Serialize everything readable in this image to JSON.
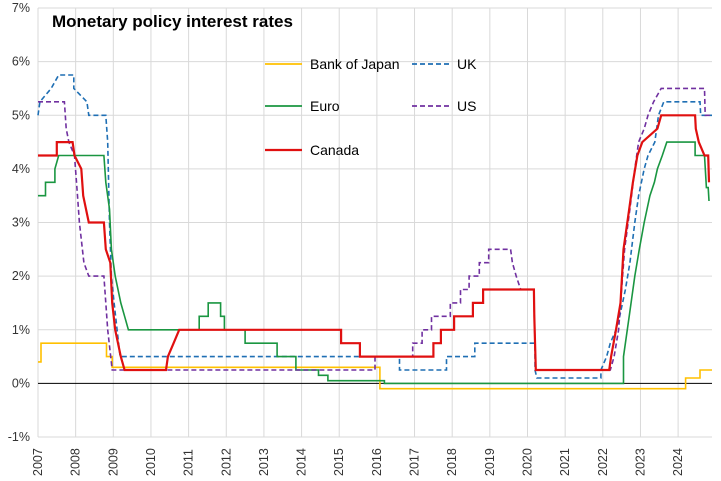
{
  "chart_data": {
    "type": "line",
    "title": "Monetary policy interest rates",
    "ylim": [
      -1,
      7
    ],
    "xlim": [
      2007,
      2024.9
    ],
    "y_ticks": [
      -1,
      0,
      1,
      2,
      3,
      4,
      5,
      6,
      7
    ],
    "y_tick_labels": [
      "-1%",
      "0%",
      "1%",
      "2%",
      "3%",
      "4%",
      "5%",
      "6%",
      "7%"
    ],
    "x_ticks": [
      2007,
      2008,
      2009,
      2010,
      2011,
      2012,
      2013,
      2014,
      2015,
      2016,
      2017,
      2018,
      2019,
      2020,
      2021,
      2022,
      2023,
      2024
    ],
    "x_tick_labels": [
      "2007",
      "2008",
      "2009",
      "2010",
      "2011",
      "2012",
      "2013",
      "2014",
      "2015",
      "2016",
      "2017",
      "2018",
      "2019",
      "2020",
      "2021",
      "2022",
      "2023",
      "2024"
    ],
    "grid": "vertical and horizontal",
    "legend": "upper-center",
    "series": [
      {
        "name": "Bank of Japan",
        "color": "#FFC000",
        "dash": "solid",
        "points": [
          [
            2007.0,
            0.4
          ],
          [
            2007.08,
            0.4
          ],
          [
            2007.08,
            0.75
          ],
          [
            2008.82,
            0.75
          ],
          [
            2008.82,
            0.5
          ],
          [
            2008.97,
            0.5
          ],
          [
            2008.97,
            0.3
          ],
          [
            2016.08,
            0.3
          ],
          [
            2016.08,
            -0.1
          ],
          [
            2024.2,
            -0.1
          ],
          [
            2024.2,
            0.1
          ],
          [
            2024.58,
            0.1
          ],
          [
            2024.58,
            0.25
          ],
          [
            2024.9,
            0.25
          ]
        ]
      },
      {
        "name": "UK",
        "color": "#1F6FB4",
        "dash": "dashed",
        "points": [
          [
            2007.0,
            5.0
          ],
          [
            2007.05,
            5.25
          ],
          [
            2007.35,
            5.5
          ],
          [
            2007.55,
            5.75
          ],
          [
            2007.95,
            5.75
          ],
          [
            2007.95,
            5.5
          ],
          [
            2008.3,
            5.25
          ],
          [
            2008.35,
            5.0
          ],
          [
            2008.8,
            5.0
          ],
          [
            2008.85,
            4.5
          ],
          [
            2008.9,
            3.0
          ],
          [
            2008.95,
            2.0
          ],
          [
            2009.02,
            1.5
          ],
          [
            2009.1,
            1.0
          ],
          [
            2009.18,
            0.5
          ],
          [
            2016.6,
            0.5
          ],
          [
            2016.6,
            0.25
          ],
          [
            2017.85,
            0.25
          ],
          [
            2017.85,
            0.5
          ],
          [
            2018.6,
            0.5
          ],
          [
            2018.6,
            0.75
          ],
          [
            2020.2,
            0.75
          ],
          [
            2020.2,
            0.25
          ],
          [
            2020.25,
            0.1
          ],
          [
            2021.95,
            0.1
          ],
          [
            2021.95,
            0.25
          ],
          [
            2022.1,
            0.5
          ],
          [
            2022.2,
            0.75
          ],
          [
            2022.35,
            1.0
          ],
          [
            2022.45,
            1.25
          ],
          [
            2022.6,
            1.75
          ],
          [
            2022.72,
            2.25
          ],
          [
            2022.85,
            3.0
          ],
          [
            2022.95,
            3.5
          ],
          [
            2023.1,
            4.0
          ],
          [
            2023.2,
            4.25
          ],
          [
            2023.38,
            4.5
          ],
          [
            2023.48,
            5.0
          ],
          [
            2023.62,
            5.25
          ],
          [
            2024.58,
            5.25
          ],
          [
            2024.6,
            5.0
          ],
          [
            2024.9,
            5.0
          ]
        ]
      },
      {
        "name": "Euro",
        "color": "#1A9641",
        "dash": "solid",
        "points": [
          [
            2007.0,
            3.5
          ],
          [
            2007.2,
            3.5
          ],
          [
            2007.2,
            3.75
          ],
          [
            2007.45,
            3.75
          ],
          [
            2007.45,
            4.0
          ],
          [
            2007.55,
            4.25
          ],
          [
            2008.75,
            4.25
          ],
          [
            2008.8,
            3.75
          ],
          [
            2008.9,
            3.25
          ],
          [
            2008.95,
            2.5
          ],
          [
            2009.05,
            2.0
          ],
          [
            2009.2,
            1.5
          ],
          [
            2009.3,
            1.25
          ],
          [
            2009.4,
            1.0
          ],
          [
            2011.28,
            1.0
          ],
          [
            2011.28,
            1.25
          ],
          [
            2011.52,
            1.25
          ],
          [
            2011.52,
            1.5
          ],
          [
            2011.85,
            1.5
          ],
          [
            2011.85,
            1.25
          ],
          [
            2011.95,
            1.25
          ],
          [
            2011.95,
            1.0
          ],
          [
            2012.5,
            1.0
          ],
          [
            2012.5,
            0.75
          ],
          [
            2013.35,
            0.75
          ],
          [
            2013.35,
            0.5
          ],
          [
            2013.85,
            0.5
          ],
          [
            2013.85,
            0.25
          ],
          [
            2014.45,
            0.25
          ],
          [
            2014.45,
            0.15
          ],
          [
            2014.7,
            0.15
          ],
          [
            2014.7,
            0.05
          ],
          [
            2016.2,
            0.05
          ],
          [
            2016.2,
            0.0
          ],
          [
            2022.55,
            0.0
          ],
          [
            2022.55,
            0.5
          ],
          [
            2022.7,
            1.25
          ],
          [
            2022.85,
            2.0
          ],
          [
            2022.97,
            2.5
          ],
          [
            2023.1,
            3.0
          ],
          [
            2023.25,
            3.5
          ],
          [
            2023.37,
            3.75
          ],
          [
            2023.45,
            4.0
          ],
          [
            2023.58,
            4.25
          ],
          [
            2023.7,
            4.5
          ],
          [
            2024.45,
            4.5
          ],
          [
            2024.45,
            4.25
          ],
          [
            2024.7,
            4.25
          ],
          [
            2024.75,
            3.65
          ],
          [
            2024.8,
            3.65
          ],
          [
            2024.82,
            3.4
          ]
        ]
      },
      {
        "name": "US",
        "color": "#7030A0",
        "dash": "dashed",
        "points": [
          [
            2007.0,
            5.25
          ],
          [
            2007.7,
            5.25
          ],
          [
            2007.75,
            4.75
          ],
          [
            2007.82,
            4.5
          ],
          [
            2007.97,
            4.25
          ],
          [
            2008.05,
            3.5
          ],
          [
            2008.1,
            3.0
          ],
          [
            2008.22,
            2.25
          ],
          [
            2008.35,
            2.0
          ],
          [
            2008.75,
            2.0
          ],
          [
            2008.8,
            1.5
          ],
          [
            2008.85,
            1.0
          ],
          [
            2008.97,
            0.25
          ],
          [
            2015.95,
            0.25
          ],
          [
            2015.95,
            0.5
          ],
          [
            2016.95,
            0.5
          ],
          [
            2016.95,
            0.75
          ],
          [
            2017.2,
            0.75
          ],
          [
            2017.2,
            1.0
          ],
          [
            2017.45,
            1.0
          ],
          [
            2017.45,
            1.25
          ],
          [
            2017.95,
            1.25
          ],
          [
            2017.95,
            1.5
          ],
          [
            2018.22,
            1.5
          ],
          [
            2018.22,
            1.75
          ],
          [
            2018.45,
            1.75
          ],
          [
            2018.45,
            2.0
          ],
          [
            2018.72,
            2.0
          ],
          [
            2018.72,
            2.25
          ],
          [
            2018.97,
            2.25
          ],
          [
            2018.97,
            2.5
          ],
          [
            2019.55,
            2.5
          ],
          [
            2019.6,
            2.25
          ],
          [
            2019.7,
            2.0
          ],
          [
            2019.82,
            1.75
          ],
          [
            2020.17,
            1.75
          ],
          [
            2020.18,
            1.25
          ],
          [
            2020.22,
            0.25
          ],
          [
            2022.2,
            0.25
          ],
          [
            2022.3,
            0.5
          ],
          [
            2022.42,
            1.0
          ],
          [
            2022.5,
            1.75
          ],
          [
            2022.58,
            2.5
          ],
          [
            2022.72,
            3.25
          ],
          [
            2022.85,
            4.0
          ],
          [
            2022.95,
            4.5
          ],
          [
            2023.1,
            4.75
          ],
          [
            2023.2,
            5.0
          ],
          [
            2023.35,
            5.25
          ],
          [
            2023.55,
            5.5
          ],
          [
            2024.7,
            5.5
          ],
          [
            2024.72,
            5.0
          ],
          [
            2024.9,
            5.0
          ]
        ]
      },
      {
        "name": "Canada",
        "color": "#E01010",
        "dash": "solid",
        "points": [
          [
            2007.0,
            4.25
          ],
          [
            2007.5,
            4.25
          ],
          [
            2007.5,
            4.5
          ],
          [
            2007.92,
            4.5
          ],
          [
            2007.97,
            4.25
          ],
          [
            2008.15,
            4.0
          ],
          [
            2008.2,
            3.5
          ],
          [
            2008.35,
            3.0
          ],
          [
            2008.75,
            3.0
          ],
          [
            2008.8,
            2.5
          ],
          [
            2008.92,
            2.25
          ],
          [
            2008.97,
            1.5
          ],
          [
            2009.05,
            1.0
          ],
          [
            2009.2,
            0.5
          ],
          [
            2009.3,
            0.25
          ],
          [
            2010.4,
            0.25
          ],
          [
            2010.45,
            0.5
          ],
          [
            2010.6,
            0.75
          ],
          [
            2010.75,
            1.0
          ],
          [
            2015.05,
            1.0
          ],
          [
            2015.05,
            0.75
          ],
          [
            2015.55,
            0.75
          ],
          [
            2015.55,
            0.5
          ],
          [
            2017.5,
            0.5
          ],
          [
            2017.5,
            0.75
          ],
          [
            2017.7,
            0.75
          ],
          [
            2017.7,
            1.0
          ],
          [
            2018.05,
            1.0
          ],
          [
            2018.05,
            1.25
          ],
          [
            2018.55,
            1.25
          ],
          [
            2018.55,
            1.5
          ],
          [
            2018.82,
            1.5
          ],
          [
            2018.82,
            1.75
          ],
          [
            2020.17,
            1.75
          ],
          [
            2020.18,
            1.25
          ],
          [
            2020.22,
            0.25
          ],
          [
            2022.17,
            0.25
          ],
          [
            2022.22,
            0.5
          ],
          [
            2022.35,
            1.0
          ],
          [
            2022.47,
            1.5
          ],
          [
            2022.55,
            2.5
          ],
          [
            2022.7,
            3.25
          ],
          [
            2022.8,
            3.75
          ],
          [
            2022.92,
            4.25
          ],
          [
            2023.05,
            4.5
          ],
          [
            2023.45,
            4.75
          ],
          [
            2023.55,
            5.0
          ],
          [
            2024.45,
            5.0
          ],
          [
            2024.47,
            4.75
          ],
          [
            2024.55,
            4.5
          ],
          [
            2024.7,
            4.25
          ],
          [
            2024.8,
            4.25
          ],
          [
            2024.82,
            3.75
          ]
        ]
      }
    ]
  }
}
